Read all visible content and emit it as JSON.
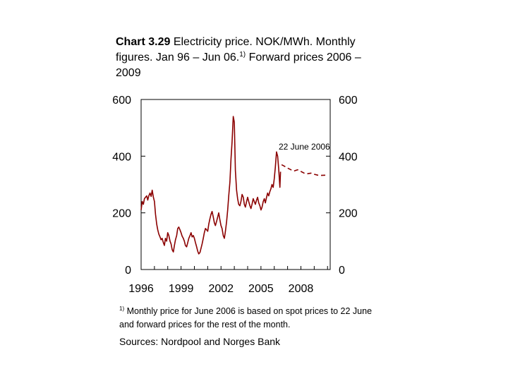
{
  "title": {
    "number": "Chart 3.29",
    "text": "Electricity price. NOK/MWh. Monthly figures. Jan 96 – Jun 06.",
    "footnote_marker": "1)",
    "text_after": "Forward prices 2006 – 2009"
  },
  "footnote": {
    "marker": "1)",
    "text": "Monthly price for June 2006 is based on spot prices to 22 June and forward prices for the rest of the month."
  },
  "sources": "Sources: Nordpool and Norges Bank",
  "colors": {
    "spot": "#8b0000",
    "forward": "#8b0000",
    "axis": "#000000"
  },
  "chart_data": {
    "type": "line",
    "title": "Electricity price. NOK/MWh. Monthly figures. Jan 96 – Jun 06. Forward prices 2006 – 2009",
    "xlabel": "",
    "ylabel": "NOK/MWh",
    "xlim": [
      1996,
      2010.2
    ],
    "ylim": [
      0,
      600
    ],
    "grid": false,
    "x_ticks": [
      1996,
      1999,
      2002,
      2005,
      2008
    ],
    "x_tick_labels": [
      "1996",
      "1999",
      "2002",
      "2005",
      "2008"
    ],
    "y_ticks": [
      0,
      200,
      400,
      600
    ],
    "y_tick_labels_left": [
      "0",
      "200",
      "400",
      "600"
    ],
    "y_tick_labels_right": [
      "0",
      "200",
      "400",
      "600"
    ],
    "annotations": [
      {
        "text": "22 June 2006",
        "x": 2006.47,
        "y": 418
      }
    ],
    "series": [
      {
        "name": "Spot price",
        "style": "solid",
        "points": [
          [
            1996.0,
            210
          ],
          [
            1996.08,
            240
          ],
          [
            1996.17,
            230
          ],
          [
            1996.25,
            250
          ],
          [
            1996.33,
            255
          ],
          [
            1996.42,
            260
          ],
          [
            1996.5,
            245
          ],
          [
            1996.58,
            260
          ],
          [
            1996.67,
            270
          ],
          [
            1996.75,
            258
          ],
          [
            1996.83,
            280
          ],
          [
            1996.92,
            255
          ],
          [
            1997.0,
            240
          ],
          [
            1997.08,
            195
          ],
          [
            1997.17,
            160
          ],
          [
            1997.25,
            140
          ],
          [
            1997.33,
            125
          ],
          [
            1997.42,
            115
          ],
          [
            1997.5,
            105
          ],
          [
            1997.58,
            110
          ],
          [
            1997.67,
            95
          ],
          [
            1997.75,
            85
          ],
          [
            1997.83,
            110
          ],
          [
            1997.92,
            100
          ],
          [
            1998.0,
            130
          ],
          [
            1998.08,
            120
          ],
          [
            1998.17,
            100
          ],
          [
            1998.25,
            90
          ],
          [
            1998.33,
            70
          ],
          [
            1998.42,
            62
          ],
          [
            1998.5,
            85
          ],
          [
            1998.58,
            105
          ],
          [
            1998.67,
            120
          ],
          [
            1998.75,
            145
          ],
          [
            1998.83,
            150
          ],
          [
            1998.92,
            140
          ],
          [
            1999.0,
            130
          ],
          [
            1999.08,
            118
          ],
          [
            1999.17,
            110
          ],
          [
            1999.25,
            100
          ],
          [
            1999.33,
            85
          ],
          [
            1999.42,
            80
          ],
          [
            1999.5,
            95
          ],
          [
            1999.58,
            110
          ],
          [
            1999.67,
            120
          ],
          [
            1999.75,
            130
          ],
          [
            1999.83,
            115
          ],
          [
            1999.92,
            120
          ],
          [
            2000.0,
            110
          ],
          [
            2000.08,
            95
          ],
          [
            2000.17,
            80
          ],
          [
            2000.25,
            65
          ],
          [
            2000.33,
            55
          ],
          [
            2000.42,
            60
          ],
          [
            2000.5,
            75
          ],
          [
            2000.58,
            90
          ],
          [
            2000.67,
            110
          ],
          [
            2000.75,
            130
          ],
          [
            2000.83,
            145
          ],
          [
            2000.92,
            140
          ],
          [
            2001.0,
            135
          ],
          [
            2001.08,
            160
          ],
          [
            2001.17,
            180
          ],
          [
            2001.25,
            195
          ],
          [
            2001.33,
            205
          ],
          [
            2001.42,
            185
          ],
          [
            2001.5,
            165
          ],
          [
            2001.58,
            155
          ],
          [
            2001.67,
            170
          ],
          [
            2001.75,
            185
          ],
          [
            2001.83,
            200
          ],
          [
            2001.92,
            175
          ],
          [
            2002.0,
            155
          ],
          [
            2002.08,
            145
          ],
          [
            2002.17,
            120
          ],
          [
            2002.25,
            110
          ],
          [
            2002.33,
            135
          ],
          [
            2002.42,
            170
          ],
          [
            2002.5,
            210
          ],
          [
            2002.58,
            260
          ],
          [
            2002.67,
            310
          ],
          [
            2002.75,
            390
          ],
          [
            2002.83,
            450
          ],
          [
            2002.92,
            540
          ],
          [
            2003.0,
            520
          ],
          [
            2003.08,
            350
          ],
          [
            2003.17,
            280
          ],
          [
            2003.25,
            250
          ],
          [
            2003.33,
            230
          ],
          [
            2003.42,
            225
          ],
          [
            2003.5,
            240
          ],
          [
            2003.58,
            265
          ],
          [
            2003.67,
            255
          ],
          [
            2003.75,
            230
          ],
          [
            2003.83,
            220
          ],
          [
            2003.92,
            240
          ],
          [
            2004.0,
            255
          ],
          [
            2004.08,
            240
          ],
          [
            2004.17,
            225
          ],
          [
            2004.25,
            215
          ],
          [
            2004.33,
            230
          ],
          [
            2004.42,
            250
          ],
          [
            2004.5,
            240
          ],
          [
            2004.58,
            230
          ],
          [
            2004.67,
            245
          ],
          [
            2004.75,
            255
          ],
          [
            2004.83,
            235
          ],
          [
            2004.92,
            225
          ],
          [
            2005.0,
            210
          ],
          [
            2005.08,
            220
          ],
          [
            2005.17,
            240
          ],
          [
            2005.25,
            250
          ],
          [
            2005.33,
            235
          ],
          [
            2005.42,
            255
          ],
          [
            2005.5,
            270
          ],
          [
            2005.58,
            260
          ],
          [
            2005.67,
            275
          ],
          [
            2005.75,
            285
          ],
          [
            2005.83,
            300
          ],
          [
            2005.92,
            290
          ],
          [
            2006.0,
            320
          ],
          [
            2006.08,
            360
          ],
          [
            2006.17,
            415
          ],
          [
            2006.25,
            400
          ],
          [
            2006.33,
            355
          ],
          [
            2006.42,
            290
          ],
          [
            2006.47,
            345
          ]
        ]
      },
      {
        "name": "Forward prices 2006 – 2009",
        "style": "dashed",
        "points": [
          [
            2006.55,
            370
          ],
          [
            2006.75,
            365
          ],
          [
            2007.0,
            358
          ],
          [
            2007.25,
            352
          ],
          [
            2007.5,
            348
          ],
          [
            2007.75,
            352
          ],
          [
            2008.0,
            346
          ],
          [
            2008.25,
            340
          ],
          [
            2008.5,
            338
          ],
          [
            2008.75,
            340
          ],
          [
            2009.0,
            336
          ],
          [
            2009.25,
            333
          ],
          [
            2009.5,
            332
          ],
          [
            2009.9,
            333
          ]
        ]
      }
    ]
  }
}
